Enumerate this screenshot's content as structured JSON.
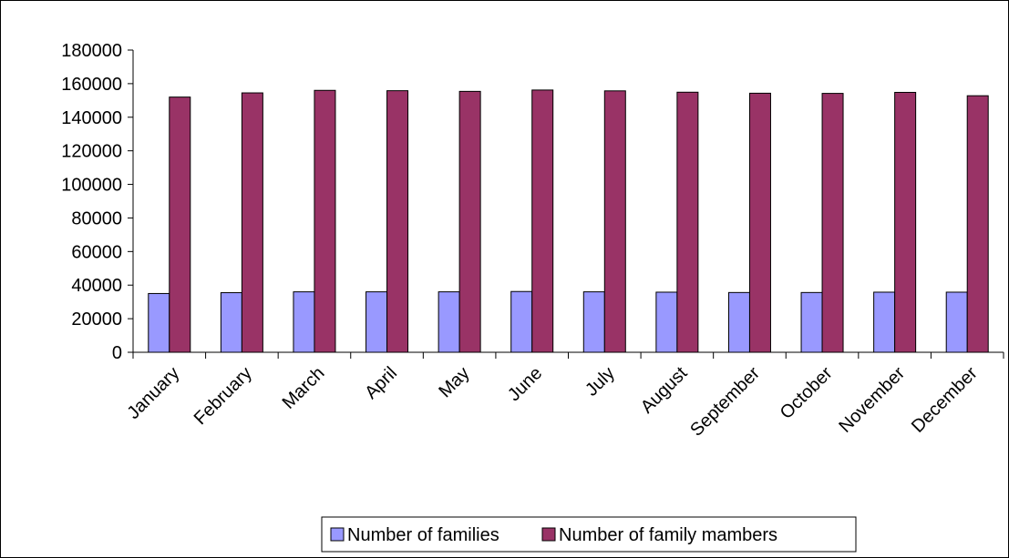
{
  "chart_data": {
    "type": "bar",
    "title": "",
    "xlabel": "",
    "ylabel": "",
    "ylim": [
      0,
      180000
    ],
    "ytick_step": 20000,
    "grid": false,
    "legend_position": "bottom",
    "categories": [
      "January",
      "February",
      "March",
      "April",
      "May",
      "June",
      "July",
      "August",
      "September",
      "October",
      "November",
      "December"
    ],
    "series": [
      {
        "name": "Number of families",
        "color": "#9999ff",
        "values": [
          35000,
          35500,
          36000,
          36000,
          36000,
          36200,
          36000,
          35800,
          35600,
          35600,
          35800,
          35800
        ]
      },
      {
        "name": "Number of family mambers",
        "color": "#993366",
        "values": [
          152000,
          154500,
          156000,
          155800,
          155400,
          156200,
          155700,
          154900,
          154300,
          154200,
          154800,
          152800
        ]
      }
    ]
  }
}
